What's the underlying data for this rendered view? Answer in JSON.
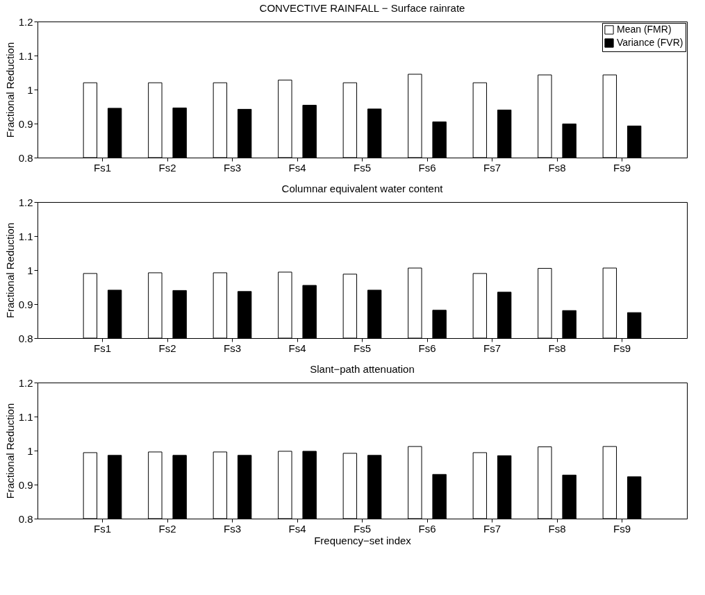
{
  "chart_data": [
    {
      "type": "bar",
      "title": "CONVECTIVE RAINFALL − Surface rainrate",
      "ylabel": "Fractional Reduction",
      "categories": [
        "Fs1",
        "Fs2",
        "Fs3",
        "Fs4",
        "Fs5",
        "Fs6",
        "Fs7",
        "Fs8",
        "Fs9"
      ],
      "ylim": [
        0.8,
        1.2
      ],
      "yticks": [
        0.8,
        0.9,
        1,
        1.1,
        1.2
      ],
      "grid": false,
      "legend": "top right",
      "series": [
        {
          "name": "Mean (FMR)",
          "color": "#ffffff",
          "values": [
            1.02,
            1.02,
            1.02,
            1.028,
            1.02,
            1.045,
            1.02,
            1.043,
            1.043
          ]
        },
        {
          "name": "Variance (FVR)",
          "color": "#000000",
          "values": [
            0.945,
            0.946,
            0.942,
            0.954,
            0.943,
            0.905,
            0.94,
            0.899,
            0.893
          ]
        }
      ]
    },
    {
      "type": "bar",
      "title": "Columnar equivalent water content",
      "ylabel": "Fractional Reduction",
      "categories": [
        "Fs1",
        "Fs2",
        "Fs3",
        "Fs4",
        "Fs5",
        "Fs6",
        "Fs7",
        "Fs8",
        "Fs9"
      ],
      "ylim": [
        0.8,
        1.2
      ],
      "yticks": [
        0.8,
        0.9,
        1,
        1.1,
        1.2
      ],
      "grid": false,
      "legend": false,
      "series": [
        {
          "color": "#ffffff",
          "values": [
            0.99,
            0.992,
            0.992,
            0.994,
            0.988,
            1.006,
            0.99,
            1.005,
            1.006
          ]
        },
        {
          "color": "#000000",
          "values": [
            0.941,
            0.94,
            0.937,
            0.955,
            0.941,
            0.882,
            0.935,
            0.881,
            0.875
          ]
        }
      ]
    },
    {
      "type": "bar",
      "title": "Slant−path attenuation",
      "xlabel": "Frequency−set index",
      "ylabel": "Fractional Reduction",
      "categories": [
        "Fs1",
        "Fs2",
        "Fs3",
        "Fs4",
        "Fs5",
        "Fs6",
        "Fs7",
        "Fs8",
        "Fs9"
      ],
      "ylim": [
        0.8,
        1.2
      ],
      "yticks": [
        0.8,
        0.9,
        1,
        1.1,
        1.2
      ],
      "grid": false,
      "legend": false,
      "series": [
        {
          "color": "#ffffff",
          "values": [
            0.994,
            0.996,
            0.996,
            0.998,
            0.992,
            1.012,
            0.994,
            1.011,
            1.012
          ]
        },
        {
          "color": "#000000",
          "values": [
            0.986,
            0.986,
            0.986,
            0.998,
            0.986,
            0.93,
            0.985,
            0.928,
            0.923
          ]
        }
      ]
    }
  ]
}
